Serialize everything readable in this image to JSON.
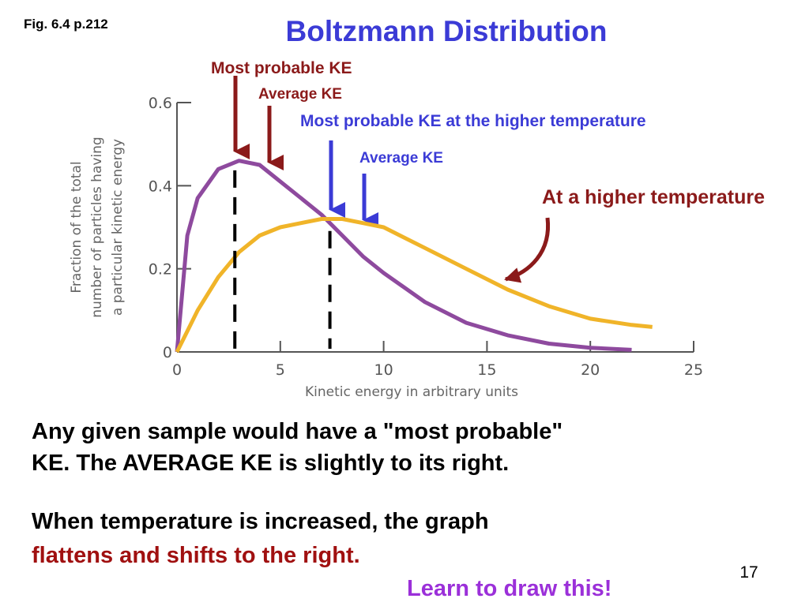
{
  "figure_ref": "Fig. 6.4 p.212",
  "title": "Boltzmann Distribution",
  "annotations": {
    "most_probable": "Most probable KE",
    "average": "Average KE",
    "most_probable_high": "Most probable KE at the higher temperature",
    "average_high": "Average KE",
    "higher_temperature": "At a higher temperature"
  },
  "chart_data": {
    "type": "line",
    "x": [
      0,
      0.5,
      1,
      2,
      3,
      4,
      5,
      6,
      7,
      8,
      9,
      10,
      12,
      14,
      16,
      18,
      20,
      22,
      23
    ],
    "series": [
      {
        "color": "#8e4a9e",
        "values": [
          0,
          0.28,
          0.37,
          0.44,
          0.46,
          0.45,
          0.41,
          0.37,
          0.33,
          0.28,
          0.23,
          0.19,
          0.12,
          0.07,
          0.04,
          0.02,
          0.01,
          0.005,
          null
        ]
      },
      {
        "color": "#f0b429",
        "values": [
          0,
          0.05,
          0.1,
          0.18,
          0.24,
          0.28,
          0.3,
          0.31,
          0.32,
          0.32,
          0.31,
          0.3,
          0.25,
          0.2,
          0.15,
          0.11,
          0.08,
          0.065,
          0.06
        ]
      }
    ],
    "marker_lines_x": [
      2.8,
      7.4
    ],
    "xlim": [
      0,
      25
    ],
    "ylim": [
      0,
      0.6
    ],
    "xticks": [
      0,
      5,
      10,
      15,
      20,
      25
    ],
    "yticks": [
      0,
      0.2,
      0.4,
      0.6
    ],
    "x_label": "Kinetic energy in arbitrary units",
    "y_label": [
      "Fraction of the total",
      "number of particles having",
      "a particular kinetic energy"
    ]
  },
  "body": {
    "paragraph_1": [
      "Any given sample would have a \"most probable\"",
      "KE. The AVERAGE KE is slightly to its right."
    ],
    "paragraph_2_line_1": "When temperature is increased, the graph",
    "paragraph_2_line_2": "flattens and shifts to the right."
  },
  "footer": "Learn to draw this!",
  "page_number": "17"
}
